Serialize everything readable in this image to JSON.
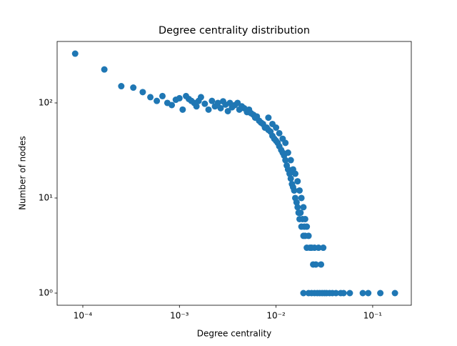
{
  "chart_data": {
    "type": "scatter",
    "title": "Degree centrality distribution",
    "x_label": "Degree centrality",
    "y_label": "Number of nodes",
    "log_x": true,
    "log_y": true,
    "color": "#1f77b4",
    "xlim": [
      5.42e-05,
      0.251
    ],
    "ylim": [
      0.745,
      443
    ],
    "xticks": [
      {
        "value": 0.0001,
        "label": "10⁻⁴"
      },
      {
        "value": 0.001,
        "label": "10⁻³"
      },
      {
        "value": 0.01,
        "label": "10⁻²"
      },
      {
        "value": 0.1,
        "label": "10⁻¹"
      }
    ],
    "yticks": [
      {
        "value": 1,
        "label": "10⁰"
      },
      {
        "value": 10,
        "label": "10¹"
      },
      {
        "value": 100,
        "label": "10²"
      }
    ],
    "x": [
      8.33e-05,
      0.000167,
      0.00025,
      0.000333,
      0.000417,
      0.0005,
      0.000583,
      0.000667,
      0.00075,
      0.000833,
      0.000917,
      0.001,
      0.00108,
      0.00117,
      0.00125,
      0.00133,
      0.00142,
      0.0015,
      0.00158,
      0.00167,
      0.00183,
      0.002,
      0.00217,
      0.00233,
      0.0025,
      0.00267,
      0.00283,
      0.003,
      0.00317,
      0.00333,
      0.0035,
      0.00375,
      0.004,
      0.00417,
      0.00442,
      0.00467,
      0.005,
      0.00525,
      0.0055,
      0.00583,
      0.00608,
      0.00633,
      0.00667,
      0.007,
      0.00733,
      0.00767,
      0.008,
      0.00833,
      0.00875,
      0.00917,
      0.00958,
      0.01,
      0.0104,
      0.0108,
      0.0113,
      0.0117,
      0.0121,
      0.0125,
      0.0129,
      0.0133,
      0.0138,
      0.0142,
      0.0146,
      0.015,
      0.0154,
      0.0158,
      0.0163,
      0.0167,
      0.0171,
      0.0175,
      0.0179,
      0.0183,
      0.0188,
      0.0192,
      0.0196,
      0.02,
      0.0208,
      0.0217,
      0.0225,
      0.0233,
      0.0242,
      0.025,
      0.0258,
      0.0275,
      0.0292,
      0.0308,
      0.00833,
      0.00917,
      0.01,
      0.0108,
      0.0117,
      0.0125,
      0.0133,
      0.0142,
      0.015,
      0.0158,
      0.0167,
      0.0175,
      0.0183,
      0.0192,
      0.02,
      0.0208,
      0.0192,
      0.0217,
      0.0233,
      0.025,
      0.0267,
      0.0283,
      0.03,
      0.0317,
      0.0333,
      0.0358,
      0.0383,
      0.0417,
      0.0467,
      0.05,
      0.058,
      0.079,
      0.09,
      0.12,
      0.17
    ],
    "values": [
      330,
      225,
      150,
      145,
      130,
      115,
      105,
      118,
      100,
      95,
      108,
      112,
      85,
      118,
      110,
      105,
      100,
      92,
      105,
      115,
      98,
      85,
      105,
      92,
      100,
      88,
      104,
      96,
      82,
      100,
      90,
      95,
      100,
      85,
      92,
      88,
      80,
      85,
      78,
      75,
      70,
      72,
      65,
      62,
      60,
      55,
      55,
      52,
      50,
      45,
      42,
      40,
      38,
      35,
      32,
      30,
      28,
      25,
      22,
      20,
      18,
      16,
      14,
      13,
      12,
      10,
      9,
      8,
      7,
      6,
      7,
      5,
      6,
      4,
      5,
      4,
      3,
      4,
      3,
      3,
      2,
      3,
      2,
      3,
      2,
      3,
      70,
      60,
      55,
      48,
      42,
      38,
      30,
      25,
      20,
      18,
      15,
      12,
      10,
      8,
      6,
      5,
      1,
      1,
      1,
      1,
      1,
      1,
      1,
      1,
      1,
      1,
      1,
      1,
      1,
      1,
      1,
      1,
      1,
      1,
      1
    ]
  }
}
